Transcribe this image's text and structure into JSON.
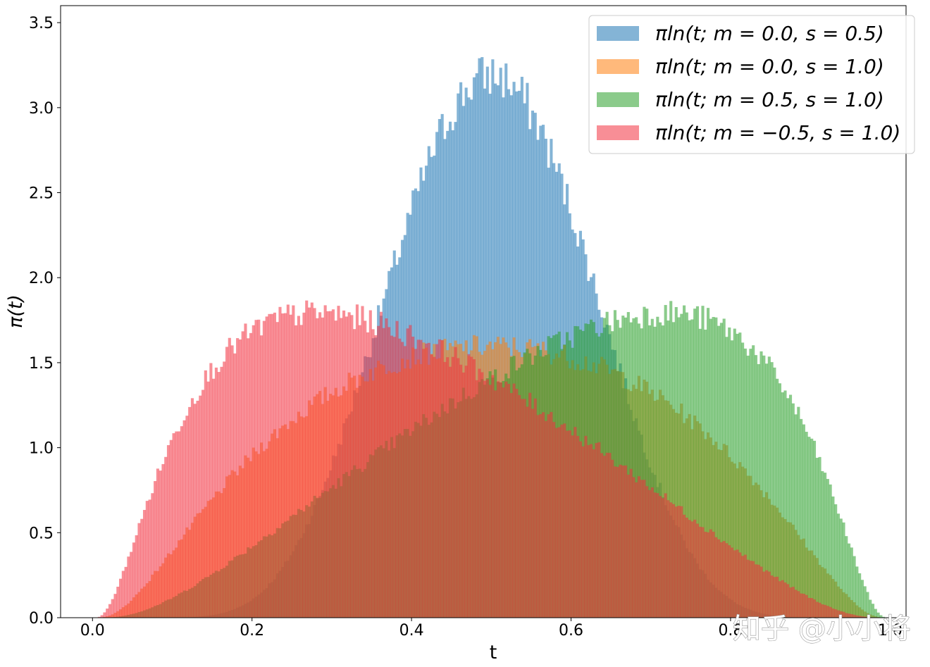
{
  "chart_data": {
    "type": "histogram",
    "xlabel": "t",
    "ylabel": "π(t)",
    "xlim": [
      -0.04,
      1.02
    ],
    "ylim": [
      0,
      3.6
    ],
    "xticks": [
      0.0,
      0.2,
      0.4,
      0.6,
      0.8,
      1.0
    ],
    "xtick_labels": [
      "0.0",
      "0.2",
      "0.4",
      "0.6",
      "0.8",
      "1.0"
    ],
    "yticks": [
      0.0,
      0.5,
      1.0,
      1.5,
      2.0,
      2.5,
      3.0,
      3.5
    ],
    "ytick_labels": [
      "0.0",
      "0.5",
      "1.0",
      "1.5",
      "2.0",
      "2.5",
      "3.0",
      "3.5"
    ],
    "grid": false,
    "legend_position": "top-right",
    "bins": 1000,
    "bin_range": [
      0,
      1
    ],
    "series": [
      {
        "name": "π_ln(t; m = 0.0, s = 0.5)",
        "legend_label": "πln(t; m = 0.0, s = 0.5)",
        "m": 0.0,
        "s": 0.5,
        "color": "#1f77b4",
        "opacity": 0.55,
        "peak_value": 3.3
      },
      {
        "name": "π_ln(t; m = 0.0, s = 1.0)",
        "legend_label": "πln(t; m = 0.0, s = 1.0)",
        "m": 0.0,
        "s": 1.0,
        "color": "#ff7f0e",
        "opacity": 0.55,
        "peak_value": 1.6
      },
      {
        "name": "π_ln(t; m = 0.5, s = 1.0)",
        "legend_label": "πln(t; m = 0.5, s = 1.0)",
        "m": 0.5,
        "s": 1.0,
        "color": "#2ca02c",
        "opacity": 0.55,
        "peak_value": 1.85
      },
      {
        "name": "π_ln(t; m = −0.5, s = 1.0)",
        "legend_label": "πln(t; m = −0.5, s = 1.0)",
        "m": -0.5,
        "s": 1.0,
        "color": "#f2323f",
        "opacity": 0.55,
        "peak_value": 1.85
      }
    ]
  },
  "watermark": "知乎 @小小将"
}
